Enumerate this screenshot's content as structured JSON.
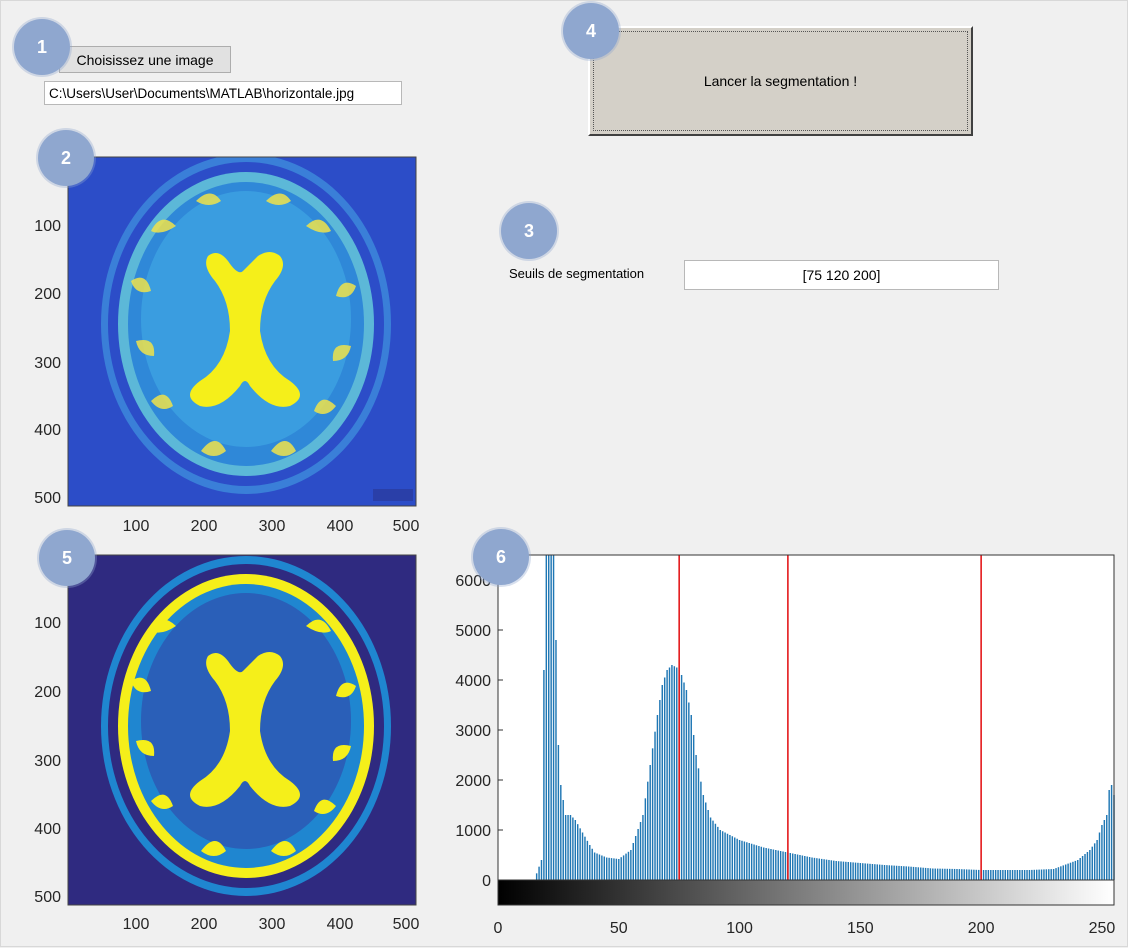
{
  "badges": [
    "1",
    "2",
    "3",
    "4",
    "5",
    "6"
  ],
  "image_selector": {
    "button_label": "Choisissez une image",
    "path_value": "C:\\Users\\User\\Documents\\MATLAB\\horizontale.jpg"
  },
  "run": {
    "button_label": "Lancer la segmentation !"
  },
  "thresholds": {
    "label": "Seuils de segmentation",
    "value": "[75 120 200]"
  },
  "image_axes": {
    "x_ticks": [
      "100",
      "200",
      "300",
      "400",
      "500"
    ],
    "y_ticks": [
      "100",
      "200",
      "300",
      "400",
      "500"
    ]
  },
  "colors": {
    "background_blue": "#2c4dc8",
    "brain_yellow": "#f5ef1a",
    "brain_cyan": "#3a9de0",
    "seg_navy": "#2f2a80",
    "histogram_bar": "#1f77b4",
    "threshold_line": "#e41a1c"
  },
  "chart_data": {
    "type": "bar",
    "title": "",
    "xlabel": "",
    "ylabel": "",
    "xlim": [
      0,
      255
    ],
    "ylim": [
      0,
      6500
    ],
    "x_ticks": [
      "0",
      "50",
      "100",
      "150",
      "200",
      "250"
    ],
    "y_ticks": [
      "0",
      "1000",
      "2000",
      "3000",
      "4000",
      "5000",
      "6000"
    ],
    "threshold_lines": [
      75,
      120,
      200
    ],
    "colorbar": "grayscale",
    "x": [
      0,
      3,
      6,
      9,
      12,
      15,
      18,
      19,
      20,
      21,
      22,
      23,
      24,
      25,
      26,
      27,
      28,
      30,
      32,
      35,
      38,
      40,
      45,
      50,
      55,
      60,
      63,
      66,
      68,
      70,
      72,
      74,
      75,
      76,
      78,
      80,
      82,
      85,
      88,
      92,
      100,
      110,
      120,
      130,
      140,
      150,
      160,
      170,
      180,
      190,
      200,
      210,
      220,
      230,
      240,
      245,
      248,
      250,
      252,
      253,
      254,
      255
    ],
    "values": [
      0,
      0,
      0,
      0,
      0,
      0,
      400,
      4200,
      6500,
      6500,
      6500,
      6500,
      4800,
      2700,
      1900,
      1600,
      1300,
      1300,
      1200,
      950,
      700,
      550,
      450,
      420,
      600,
      1300,
      2300,
      3300,
      3900,
      4200,
      4300,
      4250,
      4200,
      4100,
      3800,
      3300,
      2500,
      1700,
      1250,
      1000,
      800,
      650,
      550,
      450,
      380,
      340,
      300,
      270,
      230,
      220,
      200,
      200,
      200,
      220,
      400,
      600,
      800,
      1100,
      1300,
      1800,
      1900,
      1700
    ]
  }
}
